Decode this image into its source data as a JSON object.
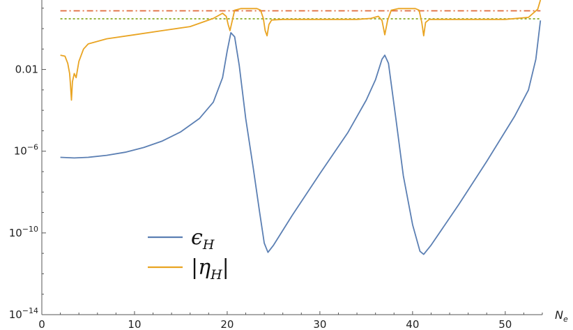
{
  "chart_data": {
    "type": "line",
    "xlabel": "N",
    "xlabel_sub": "e",
    "ylabel": "",
    "xlim": [
      0,
      54
    ],
    "ylim_log10": [
      -14,
      1.4
    ],
    "y_scale": "log",
    "x_ticks": [
      {
        "value": 0,
        "label": "0"
      },
      {
        "value": 10,
        "label": "10"
      },
      {
        "value": 20,
        "label": "20"
      },
      {
        "value": 30,
        "label": "30"
      },
      {
        "value": 40,
        "label": "40"
      },
      {
        "value": 50,
        "label": "50"
      }
    ],
    "y_ticks": [
      {
        "log10": -2,
        "label": "0.01",
        "sup": ""
      },
      {
        "log10": -6,
        "label": "10",
        "sup": "−6"
      },
      {
        "log10": -10,
        "label": "10",
        "sup": "−10"
      },
      {
        "log10": -14,
        "label": "10",
        "sup": "−14"
      }
    ],
    "reference_lines": [
      {
        "log10": 0.87,
        "color": "#e06a3a",
        "style": "dash-dot"
      },
      {
        "log10": 0.48,
        "color": "#8fb032",
        "style": "dotted"
      }
    ],
    "series": [
      {
        "name": "ϵ",
        "name_sub": "H",
        "color": "#5b7fb3",
        "points": [
          [
            2.0,
            -6.3
          ],
          [
            3.5,
            -6.33
          ],
          [
            5,
            -6.3
          ],
          [
            7,
            -6.2
          ],
          [
            9,
            -6.05
          ],
          [
            11,
            -5.82
          ],
          [
            13,
            -5.5
          ],
          [
            15,
            -5.05
          ],
          [
            17,
            -4.4
          ],
          [
            18.5,
            -3.6
          ],
          [
            19.5,
            -2.4
          ],
          [
            20.0,
            -1.1
          ],
          [
            20.4,
            -0.2
          ],
          [
            20.8,
            -0.4
          ],
          [
            21.3,
            -1.8
          ],
          [
            22,
            -4.4
          ],
          [
            22.8,
            -6.8
          ],
          [
            23.5,
            -9.0
          ],
          [
            24.0,
            -10.5
          ],
          [
            24.4,
            -10.95
          ],
          [
            25,
            -10.6
          ],
          [
            27,
            -9.15
          ],
          [
            30,
            -7.1
          ],
          [
            33,
            -5.1
          ],
          [
            35,
            -3.5
          ],
          [
            36,
            -2.5
          ],
          [
            36.7,
            -1.5
          ],
          [
            37.0,
            -1.3
          ],
          [
            37.4,
            -1.7
          ],
          [
            38.2,
            -4.4
          ],
          [
            39,
            -7.2
          ],
          [
            40,
            -9.6
          ],
          [
            40.8,
            -10.9
          ],
          [
            41.2,
            -11.05
          ],
          [
            42,
            -10.6
          ],
          [
            45,
            -8.6
          ],
          [
            48,
            -6.5
          ],
          [
            51,
            -4.3
          ],
          [
            52.5,
            -3.0
          ],
          [
            53.3,
            -1.5
          ],
          [
            53.8,
            0.4
          ]
        ]
      },
      {
        "name": "|η",
        "name_close": "|",
        "name_sub": "H",
        "color": "#e9a422",
        "points": [
          [
            2.0,
            -1.3
          ],
          [
            2.5,
            -1.35
          ],
          [
            2.8,
            -1.7
          ],
          [
            3.0,
            -2.2
          ],
          [
            3.1,
            -2.8
          ],
          [
            3.2,
            -3.5
          ],
          [
            3.3,
            -2.6
          ],
          [
            3.5,
            -2.2
          ],
          [
            3.7,
            -2.4
          ],
          [
            4,
            -1.6
          ],
          [
            4.5,
            -1.0
          ],
          [
            5,
            -0.75
          ],
          [
            7,
            -0.5
          ],
          [
            10,
            -0.3
          ],
          [
            13,
            -0.1
          ],
          [
            16,
            0.1
          ],
          [
            18.5,
            0.5
          ],
          [
            19.5,
            0.75
          ],
          [
            19.9,
            0.6
          ],
          [
            20.1,
            0.2
          ],
          [
            20.3,
            -0.1
          ],
          [
            20.5,
            0.3
          ],
          [
            20.8,
            0.9
          ],
          [
            21.5,
            0.98
          ],
          [
            23.2,
            0.98
          ],
          [
            23.6,
            0.9
          ],
          [
            23.9,
            0.5
          ],
          [
            24.1,
            -0.1
          ],
          [
            24.3,
            -0.35
          ],
          [
            24.5,
            0.2
          ],
          [
            24.8,
            0.42
          ],
          [
            26,
            0.45
          ],
          [
            30,
            0.45
          ],
          [
            34,
            0.45
          ],
          [
            35.5,
            0.5
          ],
          [
            36.3,
            0.6
          ],
          [
            36.7,
            0.4
          ],
          [
            37.0,
            -0.3
          ],
          [
            37.3,
            0.4
          ],
          [
            37.7,
            0.9
          ],
          [
            38.5,
            0.98
          ],
          [
            40.3,
            0.98
          ],
          [
            40.7,
            0.9
          ],
          [
            41.0,
            0.3
          ],
          [
            41.2,
            -0.35
          ],
          [
            41.4,
            0.3
          ],
          [
            41.8,
            0.45
          ],
          [
            45,
            0.45
          ],
          [
            50,
            0.45
          ],
          [
            52.5,
            0.55
          ],
          [
            53.5,
            0.95
          ],
          [
            53.8,
            1.4
          ]
        ]
      }
    ],
    "legend": {
      "position": "lower-left"
    }
  }
}
